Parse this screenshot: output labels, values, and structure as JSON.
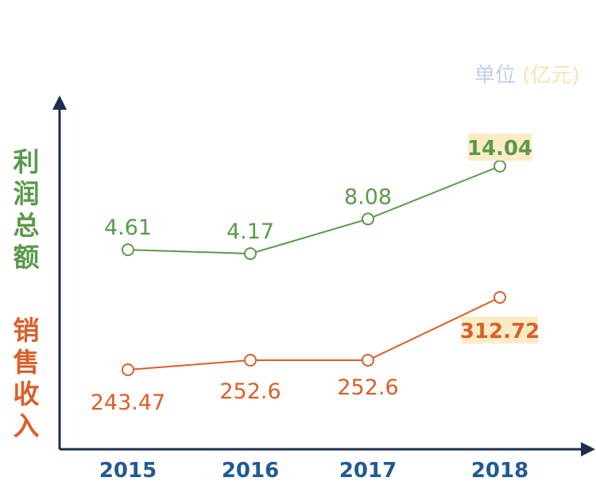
{
  "unit_label": {
    "prefix": "单位",
    "suffix": "(亿元)"
  },
  "colors": {
    "axis": "#1b2e4e",
    "profit": "#5a9a4a",
    "sales": "#d9602a",
    "x_tick": "#1f5a95",
    "highlight_bg": "#fbecc7"
  },
  "chart_data": {
    "type": "line",
    "categories": [
      "2015",
      "2016",
      "2017",
      "2018"
    ],
    "series": [
      {
        "key": "profit",
        "name_chars": [
          "利",
          "润",
          "总",
          "额"
        ],
        "values": [
          4.61,
          4.17,
          8.08,
          14.04
        ],
        "labels": [
          "4.61",
          "4.17",
          "8.08",
          "14.04"
        ],
        "highlight_last": true
      },
      {
        "key": "sales",
        "name_chars": [
          "销",
          "售",
          "收",
          "入"
        ],
        "values": [
          243.47,
          252.6,
          252.6,
          312.72
        ],
        "labels": [
          "243.47",
          "252.6",
          "252.6",
          "312.72"
        ],
        "highlight_last": true
      }
    ],
    "unit": "单位 (亿元)",
    "grid": false,
    "y_tick_labels": false
  }
}
